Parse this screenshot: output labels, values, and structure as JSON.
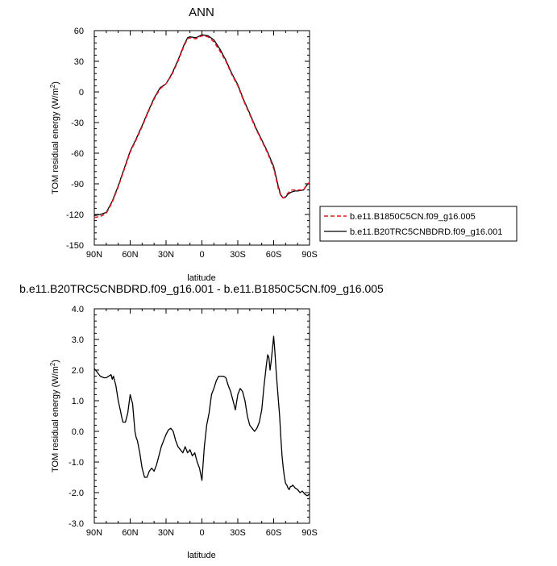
{
  "chart_data": [
    {
      "type": "line",
      "title": "ANN",
      "xlabel": "latitude",
      "ylabel": "TOM residual energy (W/m",
      "ylabel_sup": "2",
      "ylabel_close": ")",
      "xlim": [
        -90,
        90
      ],
      "ylim": [
        -150,
        60
      ],
      "x_ticks": [
        -90,
        -60,
        -30,
        0,
        30,
        60,
        90
      ],
      "x_tick_labels": [
        "90N",
        "60N",
        "30N",
        "0",
        "30S",
        "60S",
        "90S"
      ],
      "y_ticks": [
        -150,
        -120,
        -90,
        -60,
        -30,
        0,
        30,
        60
      ],
      "y_tick_labels": [
        "-150",
        "-120",
        "-90",
        "-60",
        "-30",
        "0",
        "30",
        "60"
      ],
      "grid": false,
      "legend": "right",
      "series": [
        {
          "name": "b.e11.B1850C5CN.f09_g16.005",
          "color": "#e8141e",
          "dash": "dashed",
          "x": [
            -90,
            -85,
            -80,
            -75,
            -70,
            -65,
            -60,
            -55,
            -50,
            -45,
            -40,
            -35,
            -30,
            -25,
            -20,
            -15,
            -12,
            -10,
            -5,
            0,
            5,
            10,
            15,
            20,
            25,
            30,
            35,
            40,
            45,
            50,
            55,
            60,
            62,
            64,
            66,
            68,
            70,
            72,
            75,
            78,
            80,
            85,
            88,
            90
          ],
          "y": [
            -123,
            -122,
            -119,
            -108,
            -93,
            -76,
            -59,
            -47,
            -34,
            -20,
            -7,
            3,
            8,
            17,
            30,
            45,
            52,
            53,
            52,
            55,
            54,
            49,
            40,
            30,
            17,
            6,
            -9,
            -22,
            -36,
            -48,
            -60,
            -75,
            -85,
            -95,
            -102,
            -104,
            -102,
            -99,
            -96,
            -96,
            -96,
            -96,
            -90,
            -89
          ]
        },
        {
          "name": "b.e11.B20TRC5CNBDRD.f09_g16.001",
          "color": "#000000",
          "dash": "solid",
          "x": [
            -90,
            -85,
            -80,
            -75,
            -70,
            -65,
            -60,
            -55,
            -50,
            -45,
            -40,
            -35,
            -30,
            -25,
            -20,
            -15,
            -12,
            -10,
            -5,
            0,
            5,
            10,
            15,
            20,
            25,
            30,
            35,
            40,
            45,
            50,
            55,
            60,
            62,
            64,
            66,
            68,
            70,
            72,
            75,
            78,
            80,
            85,
            88,
            90
          ],
          "y": [
            -121,
            -120,
            -118,
            -107,
            -92,
            -75,
            -58,
            -46,
            -33,
            -19,
            -6,
            4,
            8,
            18,
            31,
            46,
            53,
            54,
            53,
            56,
            55,
            51,
            42,
            31,
            18,
            7,
            -8,
            -21,
            -35,
            -47,
            -59,
            -73,
            -83,
            -93,
            -101,
            -104,
            -103,
            -100,
            -98,
            -97,
            -97,
            -96,
            -91,
            -89
          ]
        }
      ]
    },
    {
      "type": "line",
      "title": "b.e11.B20TRC5CNBDRD.f09_g16.001 - b.e11.B1850C5CN.f09_g16.005",
      "xlabel": "latitude",
      "ylabel": "TOM residual energy (W/m",
      "ylabel_sup": "2",
      "ylabel_close": ")",
      "xlim": [
        -90,
        90
      ],
      "ylim": [
        -3,
        4
      ],
      "x_ticks": [
        -90,
        -60,
        -30,
        0,
        30,
        60,
        90
      ],
      "x_tick_labels": [
        "90N",
        "60N",
        "30N",
        "0",
        "30S",
        "60S",
        "90S"
      ],
      "y_ticks": [
        -3,
        -2,
        -1,
        0,
        1,
        2,
        3,
        4
      ],
      "y_tick_labels": [
        "-3.0",
        "-2.0",
        "-1.0",
        "0.0",
        "1.0",
        "2.0",
        "3.0",
        "4.0"
      ],
      "grid": false,
      "series": [
        {
          "color": "#000000",
          "x": [
            -90,
            -88,
            -85,
            -82,
            -80,
            -78,
            -76,
            -75,
            -74,
            -72,
            -70,
            -68,
            -67,
            -66,
            -64,
            -62,
            -60,
            -58,
            -56,
            -55,
            -54,
            -52,
            -50,
            -48,
            -46,
            -45,
            -44,
            -42,
            -40,
            -38,
            -36,
            -34,
            -32,
            -30,
            -28,
            -26,
            -24,
            -22,
            -20,
            -18,
            -16,
            -14,
            -12,
            -10,
            -8,
            -6,
            -4,
            -2,
            0,
            2,
            4,
            6,
            8,
            10,
            12,
            14,
            16,
            18,
            20,
            22,
            24,
            26,
            28,
            30,
            32,
            34,
            36,
            38,
            40,
            42,
            44,
            46,
            48,
            50,
            52,
            54,
            55,
            56,
            57,
            58,
            60,
            61,
            62,
            63,
            64,
            65,
            66,
            67,
            68,
            69,
            70,
            71,
            72,
            73,
            74,
            75,
            76,
            78,
            80,
            82,
            84,
            86,
            88,
            90
          ],
          "y": [
            2.05,
            1.95,
            1.8,
            1.75,
            1.75,
            1.8,
            1.85,
            1.7,
            1.8,
            1.5,
            1.0,
            0.65,
            0.45,
            0.3,
            0.3,
            0.6,
            1.2,
            0.9,
            0.0,
            -0.2,
            -0.3,
            -0.7,
            -1.2,
            -1.5,
            -1.5,
            -1.4,
            -1.3,
            -1.2,
            -1.3,
            -1.1,
            -0.8,
            -0.5,
            -0.3,
            -0.1,
            0.05,
            0.1,
            0.0,
            -0.3,
            -0.5,
            -0.6,
            -0.7,
            -0.5,
            -0.7,
            -0.6,
            -0.8,
            -0.7,
            -1.0,
            -1.2,
            -1.6,
            -0.5,
            0.2,
            0.6,
            1.2,
            1.4,
            1.65,
            1.8,
            1.8,
            1.8,
            1.75,
            1.5,
            1.3,
            1.0,
            0.7,
            1.2,
            1.4,
            1.3,
            1.0,
            0.5,
            0.2,
            0.1,
            0.0,
            0.1,
            0.3,
            0.7,
            1.5,
            2.2,
            2.5,
            2.4,
            2.0,
            2.3,
            3.1,
            2.6,
            2.0,
            1.5,
            1.0,
            0.5,
            -0.2,
            -0.8,
            -1.2,
            -1.5,
            -1.7,
            -1.75,
            -1.85,
            -1.9,
            -1.8,
            -1.8,
            -1.75,
            -1.85,
            -1.9,
            -2.0,
            -1.95,
            -2.05,
            -2.1,
            -2.05
          ]
        }
      ]
    }
  ]
}
